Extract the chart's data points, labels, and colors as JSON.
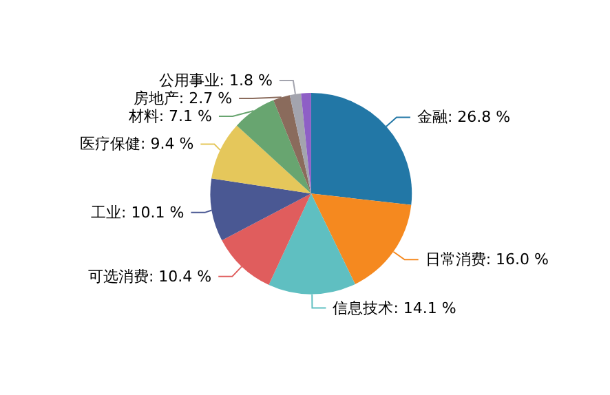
{
  "chart_data": {
    "type": "pie",
    "categories": [
      "金融",
      "日常消费",
      "信息技术",
      "可选消费",
      "工业",
      "医疗保健",
      "材料",
      "房地产",
      "公用事业",
      null
    ],
    "values": [
      26.8,
      16.0,
      14.1,
      10.4,
      10.1,
      9.4,
      7.1,
      2.7,
      1.8,
      1.6
    ],
    "colors": [
      "#2277a6",
      "#f5891f",
      "#5fbfc1",
      "#e05d5d",
      "#4a5893",
      "#e5c75b",
      "#68a570",
      "#8a6b5c",
      "#a3a4ae",
      "#8e5fc6"
    ],
    "value_labels": [
      ": 26.8 %",
      ": 16.0 %",
      ": 14.1 %",
      ": 10.4 %",
      ": 10.1 %",
      ": 9.4 %",
      ": 7.1 %",
      ": 2.7 %",
      ": 1.8 %",
      null
    ],
    "legend": false
  }
}
